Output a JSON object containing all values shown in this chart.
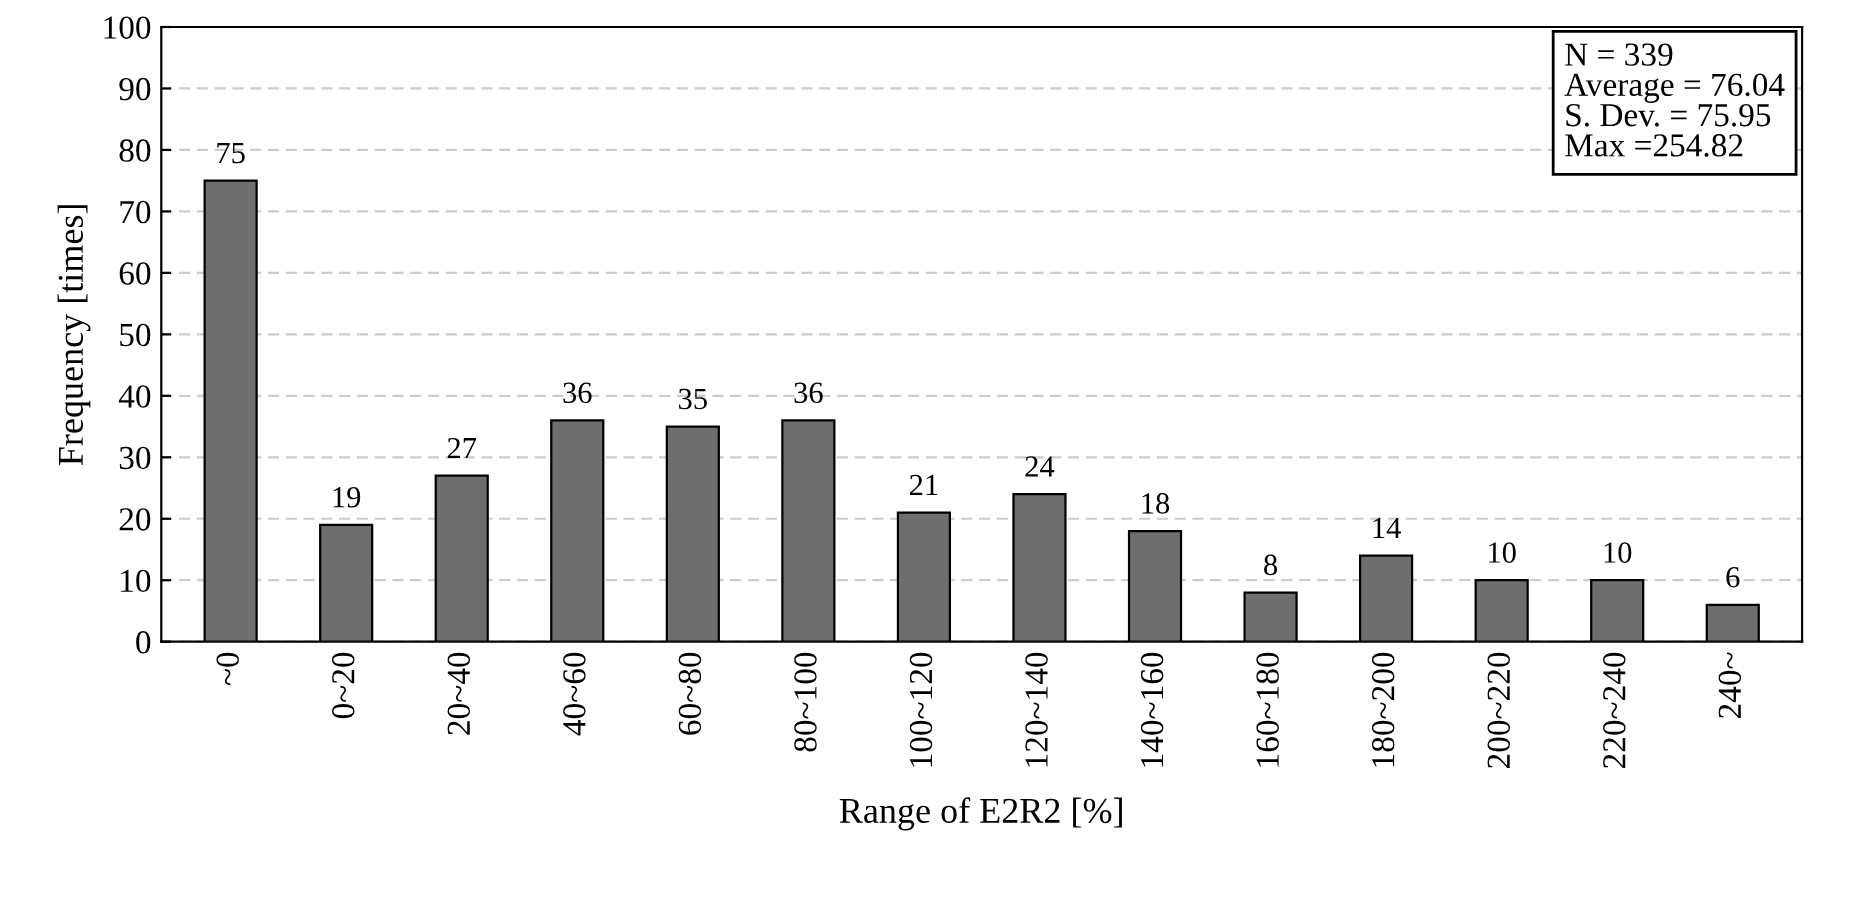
{
  "chart_data": {
    "type": "bar",
    "xlabel": "Range of E2R2 [%]",
    "ylabel": "Frequency [times]",
    "categories": [
      "~0",
      "0~20",
      "20~40",
      "40~60",
      "60~80",
      "80~100",
      "100~120",
      "120~140",
      "140~160",
      "160~180",
      "180~200",
      "200~220",
      "220~240",
      "240~"
    ],
    "values": [
      75,
      19,
      27,
      36,
      35,
      36,
      21,
      24,
      18,
      8,
      14,
      10,
      10,
      6
    ],
    "color": "#6e6e6e",
    "data_labels": true,
    "ylim": [
      0,
      100
    ],
    "yticks": [
      0,
      10,
      20,
      30,
      40,
      50,
      60,
      70,
      80,
      90,
      100
    ],
    "grid": "y",
    "annotations": [
      "N = 339",
      "Average = 76.04",
      "S. Dev. = 75.95",
      "Max =254.82"
    ]
  }
}
